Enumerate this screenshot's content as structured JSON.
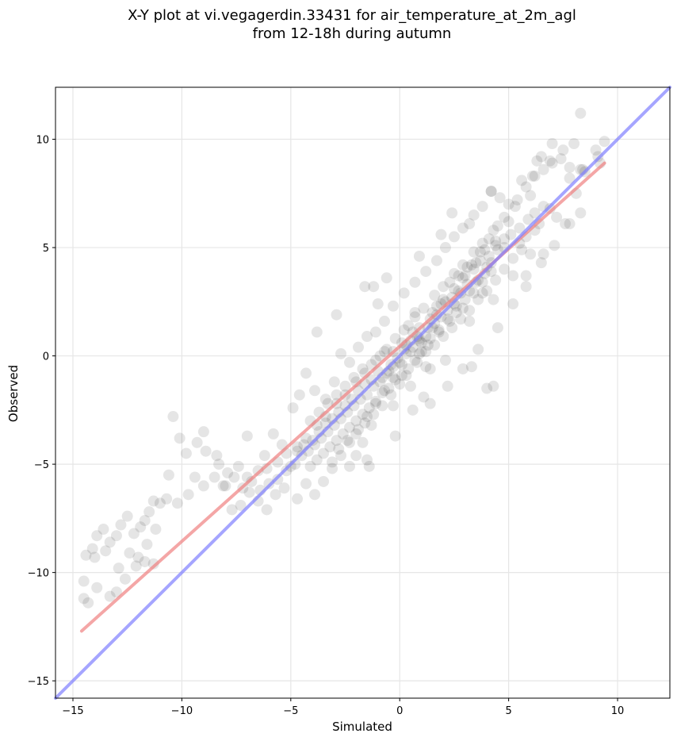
{
  "chart_data": {
    "type": "scatter",
    "title": "X-Y plot at vi.vegagerdin.33431 for air_temperature_at_2m_agl",
    "subtitle": "from 12-18h during autumn",
    "xlabel": "Simulated",
    "ylabel": "Observed",
    "xlim": [
      -15.8,
      12.4
    ],
    "ylim": [
      -15.8,
      12.4
    ],
    "xticks": [
      -15,
      -10,
      -5,
      0,
      5,
      10
    ],
    "yticks": [
      -15,
      -10,
      -5,
      0,
      5,
      10
    ],
    "xtick_labels": [
      "−15",
      "−10",
      "−5",
      "0",
      "5",
      "10"
    ],
    "ytick_labels": [
      "−15",
      "−10",
      "−5",
      "0",
      "5",
      "10"
    ],
    "grid": true,
    "points": [
      [
        8.3,
        11.2
      ],
      [
        7.0,
        9.8
      ],
      [
        6.5,
        9.2
      ],
      [
        7.5,
        9.5
      ],
      [
        8.0,
        9.8
      ],
      [
        9.0,
        9.5
      ],
      [
        9.4,
        9.9
      ],
      [
        9.1,
        9.2
      ],
      [
        8.3,
        8.6
      ],
      [
        7.8,
        8.2
      ],
      [
        8.5,
        8.5
      ],
      [
        8.1,
        7.5
      ],
      [
        7.2,
        6.4
      ],
      [
        6.9,
        6.8
      ],
      [
        7.6,
        6.1
      ],
      [
        6.2,
        5.8
      ],
      [
        5.8,
        5.5
      ],
      [
        6.4,
        6.1
      ],
      [
        5.5,
        5.2
      ],
      [
        6.0,
        4.7
      ],
      [
        6.6,
        4.7
      ],
      [
        5.2,
        3.7
      ],
      [
        4.8,
        5.0
      ],
      [
        4.2,
        4.3
      ],
      [
        4.5,
        4.9
      ],
      [
        4.0,
        4.1
      ],
      [
        3.6,
        3.5
      ],
      [
        3.9,
        3.8
      ],
      [
        3.2,
        3.0
      ],
      [
        3.5,
        3.4
      ],
      [
        2.8,
        2.9
      ],
      [
        3.1,
        3.3
      ],
      [
        2.5,
        2.4
      ],
      [
        2.9,
        2.2
      ],
      [
        2.2,
        2.1
      ],
      [
        2.6,
        2.0
      ],
      [
        1.9,
        1.8
      ],
      [
        2.3,
        1.6
      ],
      [
        1.5,
        1.3
      ],
      [
        1.8,
        1.1
      ],
      [
        1.2,
        0.9
      ],
      [
        1.6,
        1.5
      ],
      [
        0.9,
        0.7
      ],
      [
        1.3,
        0.5
      ],
      [
        0.6,
        0.4
      ],
      [
        1.0,
        0.2
      ],
      [
        0.3,
        0.1
      ],
      [
        0.7,
        -0.2
      ],
      [
        0.0,
        -0.3
      ],
      [
        0.4,
        -0.6
      ],
      [
        -0.3,
        -0.5
      ],
      [
        0.1,
        -0.9
      ],
      [
        -0.6,
        -0.8
      ],
      [
        -0.2,
        -1.1
      ],
      [
        -0.9,
        -1.2
      ],
      [
        -0.5,
        -1.5
      ],
      [
        -1.2,
        -1.4
      ],
      [
        -0.8,
        -1.7
      ],
      [
        -1.5,
        -1.8
      ],
      [
        -1.1,
        -2.1
      ],
      [
        -1.8,
        -2.0
      ],
      [
        -1.4,
        -2.4
      ],
      [
        -2.1,
        -2.3
      ],
      [
        -1.7,
        -2.7
      ],
      [
        -2.4,
        -2.6
      ],
      [
        -2.0,
        -3.0
      ],
      [
        -2.7,
        -2.9
      ],
      [
        -2.3,
        -3.3
      ],
      [
        -3.0,
        -3.2
      ],
      [
        -2.6,
        -3.6
      ],
      [
        -3.3,
        -3.5
      ],
      [
        -2.9,
        -3.9
      ],
      [
        -3.6,
        -3.8
      ],
      [
        -3.2,
        -4.2
      ],
      [
        -3.9,
        -4.1
      ],
      [
        -3.5,
        -4.5
      ],
      [
        -4.2,
        -4.4
      ],
      [
        -3.8,
        -4.8
      ],
      [
        -4.5,
        -4.6
      ],
      [
        -4.1,
        -5.1
      ],
      [
        -4.8,
        -5.0
      ],
      [
        -5.2,
        -5.3
      ],
      [
        -5.6,
        -5.7
      ],
      [
        -6.0,
        -5.9
      ],
      [
        -6.4,
        -6.2
      ],
      [
        -6.8,
        -5.8
      ],
      [
        -7.2,
        -6.1
      ],
      [
        -7.6,
        -5.6
      ],
      [
        -8.0,
        -6.0
      ],
      [
        -8.4,
        -4.6
      ],
      [
        -8.9,
        -4.4
      ],
      [
        -9.3,
        -4.0
      ],
      [
        -9.8,
        -4.5
      ],
      [
        -10.4,
        -2.8
      ],
      [
        -10.1,
        -3.8
      ],
      [
        -9.0,
        -3.5
      ],
      [
        -7.0,
        -3.7
      ],
      [
        -6.2,
        -4.6
      ],
      [
        -5.8,
        -3.6
      ],
      [
        -5.4,
        -4.1
      ],
      [
        -4.9,
        -2.4
      ],
      [
        -4.6,
        -1.8
      ],
      [
        -4.3,
        -0.8
      ],
      [
        -3.9,
        -1.6
      ],
      [
        -3.4,
        -2.0
      ],
      [
        -3.0,
        -1.2
      ],
      [
        -2.7,
        0.1
      ],
      [
        -2.3,
        -0.3
      ],
      [
        -1.9,
        0.4
      ],
      [
        -1.5,
        0.9
      ],
      [
        -1.1,
        1.1
      ],
      [
        -0.7,
        1.6
      ],
      [
        -0.3,
        2.3
      ],
      [
        0.2,
        2.9
      ],
      [
        -1.0,
        2.4
      ],
      [
        -1.2,
        3.2
      ],
      [
        0.7,
        3.4
      ],
      [
        1.2,
        3.9
      ],
      [
        1.7,
        4.4
      ],
      [
        2.1,
        5.0
      ],
      [
        2.5,
        5.5
      ],
      [
        2.9,
        5.9
      ],
      [
        3.4,
        6.5
      ],
      [
        3.8,
        6.9
      ],
      [
        4.2,
        7.6
      ],
      [
        4.6,
        7.3
      ],
      [
        5.0,
        7.0
      ],
      [
        5.4,
        7.2
      ],
      [
        5.8,
        7.8
      ],
      [
        6.2,
        8.3
      ],
      [
        6.6,
        8.6
      ],
      [
        7.0,
        8.9
      ],
      [
        7.4,
        9.1
      ],
      [
        6.3,
        9.0
      ],
      [
        5.0,
        6.2
      ],
      [
        4.5,
        6.0
      ],
      [
        4.1,
        5.4
      ],
      [
        3.7,
        4.8
      ],
      [
        3.3,
        4.2
      ],
      [
        2.9,
        3.6
      ],
      [
        2.5,
        3.1
      ],
      [
        2.1,
        2.5
      ],
      [
        1.7,
        1.9
      ],
      [
        1.3,
        1.3
      ],
      [
        0.9,
        0.8
      ],
      [
        0.5,
        0.2
      ],
      [
        0.1,
        -0.4
      ],
      [
        -0.3,
        -1.0
      ],
      [
        -0.7,
        -1.6
      ],
      [
        -1.1,
        -2.2
      ],
      [
        -1.5,
        -2.8
      ],
      [
        -1.9,
        -3.4
      ],
      [
        -2.3,
        -4.0
      ],
      [
        -2.7,
        -4.6
      ],
      [
        -3.1,
        -5.2
      ],
      [
        -3.5,
        -5.8
      ],
      [
        -3.9,
        -6.4
      ],
      [
        -4.3,
        -5.9
      ],
      [
        -4.7,
        -6.6
      ],
      [
        -5.0,
        -5.1
      ],
      [
        -5.3,
        -6.1
      ],
      [
        -5.7,
        -6.4
      ],
      [
        -6.1,
        -7.1
      ],
      [
        -6.5,
        -6.7
      ],
      [
        -6.9,
        -6.3
      ],
      [
        -7.3,
        -6.9
      ],
      [
        -7.7,
        -7.1
      ],
      [
        -8.1,
        -6.0
      ],
      [
        -8.5,
        -5.6
      ],
      [
        -9.0,
        -6.0
      ],
      [
        -9.4,
        -5.6
      ],
      [
        -9.7,
        -6.4
      ],
      [
        -10.2,
        -6.8
      ],
      [
        -10.6,
        -5.5
      ],
      [
        -10.7,
        -6.6
      ],
      [
        -11.0,
        -6.8
      ],
      [
        -11.3,
        -6.7
      ],
      [
        -11.5,
        -7.2
      ],
      [
        -11.7,
        -7.6
      ],
      [
        -11.9,
        -7.9
      ],
      [
        -11.6,
        -8.7
      ],
      [
        -11.2,
        -8.0
      ],
      [
        -12.2,
        -8.2
      ],
      [
        -12.5,
        -7.4
      ],
      [
        -12.8,
        -7.8
      ],
      [
        -13.0,
        -8.3
      ],
      [
        -13.3,
        -8.6
      ],
      [
        -13.6,
        -8.0
      ],
      [
        -13.9,
        -8.3
      ],
      [
        -14.1,
        -8.9
      ],
      [
        -14.4,
        -9.2
      ],
      [
        -14.0,
        -9.3
      ],
      [
        -13.5,
        -9.0
      ],
      [
        -12.9,
        -9.8
      ],
      [
        -12.4,
        -9.1
      ],
      [
        -12.0,
        -9.3
      ],
      [
        -11.7,
        -9.5
      ],
      [
        -12.1,
        -9.7
      ],
      [
        -12.6,
        -10.3
      ],
      [
        -13.0,
        -10.9
      ],
      [
        -13.3,
        -11.1
      ],
      [
        -13.9,
        -10.7
      ],
      [
        -14.5,
        -10.4
      ],
      [
        -14.5,
        -11.2
      ],
      [
        -14.3,
        -11.4
      ],
      [
        -11.3,
        -9.6
      ],
      [
        -2.9,
        1.9
      ],
      [
        -3.8,
        1.1
      ],
      [
        -1.6,
        3.2
      ],
      [
        -0.6,
        3.6
      ],
      [
        0.9,
        4.6
      ],
      [
        1.9,
        5.6
      ],
      [
        2.4,
        6.6
      ],
      [
        3.2,
        6.1
      ],
      [
        4.2,
        7.6
      ],
      [
        5.6,
        8.1
      ],
      [
        6.1,
        8.3
      ],
      [
        6.9,
        9.0
      ],
      [
        7.8,
        8.7
      ],
      [
        8.4,
        8.6
      ],
      [
        9.2,
        8.9
      ],
      [
        5.8,
        3.7
      ],
      [
        4.3,
        2.6
      ],
      [
        3.8,
        2.9
      ],
      [
        3.2,
        1.6
      ],
      [
        4.0,
        -1.5
      ],
      [
        4.3,
        -1.4
      ],
      [
        3.3,
        -0.5
      ],
      [
        2.1,
        -0.2
      ],
      [
        1.4,
        -0.6
      ],
      [
        1.1,
        -1.9
      ],
      [
        0.6,
        -2.5
      ],
      [
        -0.3,
        -2.3
      ],
      [
        -1.3,
        -3.2
      ],
      [
        -1.7,
        -4.0
      ],
      [
        -2.0,
        -4.6
      ],
      [
        -3.1,
        -4.9
      ],
      [
        -2.3,
        -5.1
      ],
      [
        -1.4,
        -5.1
      ],
      [
        -1.5,
        -4.8
      ],
      [
        -0.2,
        -3.7
      ],
      [
        1.4,
        -2.2
      ],
      [
        2.2,
        -1.4
      ],
      [
        2.9,
        -0.6
      ],
      [
        3.6,
        0.3
      ],
      [
        4.5,
        1.3
      ],
      [
        5.2,
        2.4
      ],
      [
        5.8,
        3.2
      ],
      [
        6.5,
        4.3
      ],
      [
        7.1,
        5.1
      ],
      [
        7.8,
        6.1
      ],
      [
        8.3,
        6.6
      ],
      [
        6.0,
        7.4
      ],
      [
        5.3,
        6.9
      ],
      [
        4.8,
        6.4
      ],
      [
        4.3,
        5.8
      ],
      [
        3.8,
        5.2
      ],
      [
        3.4,
        4.8
      ],
      [
        2.9,
        4.2
      ],
      [
        2.5,
        3.8
      ],
      [
        2.0,
        3.2
      ],
      [
        1.6,
        2.8
      ],
      [
        1.1,
        2.2
      ],
      [
        0.7,
        1.8
      ],
      [
        0.2,
        1.2
      ],
      [
        -0.2,
        0.8
      ],
      [
        -0.7,
        0.2
      ],
      [
        -1.1,
        -0.2
      ],
      [
        -1.6,
        -0.8
      ],
      [
        -2.0,
        -1.2
      ],
      [
        -2.5,
        -1.8
      ],
      [
        -2.9,
        -2.2
      ],
      [
        -3.4,
        -2.8
      ],
      [
        -3.8,
        -3.2
      ],
      [
        -4.3,
        -3.8
      ],
      [
        -4.7,
        -4.2
      ],
      [
        -5.2,
        -4.5
      ],
      [
        -5.6,
        -4.9
      ],
      [
        -6.1,
        -5.2
      ],
      [
        -6.5,
        -5.3
      ],
      [
        -7.0,
        -5.6
      ],
      [
        -7.4,
        -5.1
      ],
      [
        -7.9,
        -5.4
      ],
      [
        -8.3,
        -5.0
      ],
      [
        0.5,
        0.7
      ],
      [
        0.8,
        0.9
      ],
      [
        1.0,
        0.6
      ],
      [
        0.3,
        0.5
      ],
      [
        0.6,
        1.1
      ],
      [
        0.2,
        0.3
      ],
      [
        0.9,
        1.3
      ],
      [
        1.4,
        1.7
      ],
      [
        1.7,
        2.3
      ],
      [
        2.0,
        2.6
      ],
      [
        2.4,
        2.7
      ],
      [
        2.7,
        3.0
      ],
      [
        3.0,
        3.7
      ],
      [
        3.4,
        4.0
      ],
      [
        3.7,
        4.4
      ],
      [
        4.1,
        4.6
      ],
      [
        4.4,
        5.1
      ],
      [
        4.8,
        5.4
      ],
      [
        5.1,
        5.6
      ],
      [
        5.5,
        5.9
      ],
      [
        5.9,
        6.3
      ],
      [
        6.2,
        6.6
      ],
      [
        6.6,
        6.9
      ],
      [
        -0.1,
        -0.1
      ],
      [
        -0.4,
        -0.4
      ],
      [
        -0.8,
        -1.0
      ],
      [
        -1.0,
        -0.7
      ],
      [
        -1.3,
        -1.1
      ],
      [
        -1.6,
        -1.3
      ],
      [
        -1.9,
        -1.6
      ],
      [
        -2.2,
        -2.0
      ],
      [
        -2.5,
        -2.3
      ],
      [
        -2.8,
        -2.6
      ],
      [
        -3.1,
        -2.9
      ],
      [
        -3.4,
        -3.1
      ],
      [
        -3.7,
        -3.5
      ],
      [
        -4.0,
        -3.9
      ],
      [
        -4.4,
        -4.1
      ],
      [
        -4.7,
        -4.4
      ],
      [
        0.4,
        1.4
      ],
      [
        0.7,
        2.0
      ],
      [
        1.5,
        2.0
      ],
      [
        1.9,
        2.4
      ],
      [
        2.3,
        3.4
      ],
      [
        2.7,
        3.7
      ],
      [
        3.1,
        4.1
      ],
      [
        3.5,
        4.3
      ],
      [
        3.9,
        4.9
      ],
      [
        4.4,
        5.3
      ],
      [
        -0.6,
        0.3
      ],
      [
        -0.9,
        0.0
      ],
      [
        -1.3,
        -0.4
      ],
      [
        -1.7,
        -0.6
      ],
      [
        -2.1,
        -1.0
      ],
      [
        -2.5,
        -1.4
      ],
      [
        -2.9,
        -1.8
      ],
      [
        -3.3,
        -2.2
      ],
      [
        -3.7,
        -2.6
      ],
      [
        -4.1,
        -3.0
      ],
      [
        1.2,
        0.2
      ],
      [
        1.6,
        0.5
      ],
      [
        2.0,
        0.9
      ],
      [
        2.4,
        1.3
      ],
      [
        2.8,
        1.7
      ],
      [
        3.2,
        2.1
      ],
      [
        3.6,
        2.6
      ],
      [
        4.0,
        3.0
      ],
      [
        4.4,
        3.5
      ],
      [
        4.8,
        4.0
      ],
      [
        5.2,
        4.5
      ],
      [
        5.6,
        4.9
      ],
      [
        0.0,
        -1.3
      ],
      [
        -0.4,
        -1.8
      ],
      [
        -0.8,
        -2.3
      ],
      [
        -1.2,
        -2.7
      ],
      [
        -1.6,
        -3.1
      ],
      [
        -2.0,
        -3.6
      ],
      [
        -2.4,
        -3.9
      ],
      [
        -2.8,
        -4.3
      ],
      [
        0.3,
        -0.9
      ],
      [
        0.8,
        -0.3
      ],
      [
        1.2,
        -0.5
      ],
      [
        0.5,
        -1.4
      ],
      [
        0.1,
        0.6
      ],
      [
        -0.3,
        0.2
      ],
      [
        -0.5,
        -0.7
      ],
      [
        0.9,
        0.1
      ],
      [
        1.4,
        0.8
      ],
      [
        1.8,
        1.2
      ],
      [
        2.2,
        1.7
      ],
      [
        2.6,
        2.3
      ],
      [
        3.0,
        2.6
      ],
      [
        3.4,
        2.9
      ],
      [
        3.8,
        3.4
      ],
      [
        4.2,
        3.9
      ]
    ]
  },
  "fit_lines": [
    {
      "name": "regression",
      "color": "#f08080",
      "from": [
        -14.6,
        -12.7
      ],
      "to": [
        9.4,
        8.9
      ]
    },
    {
      "name": "identity",
      "color": "#7f7fff",
      "from": [
        -15.8,
        -15.8
      ],
      "to": [
        12.4,
        12.4
      ]
    }
  ],
  "colors": {
    "points": "#000000",
    "grid": "#e6e6e6",
    "regression": "#f08080",
    "identity": "#7f7fff"
  }
}
